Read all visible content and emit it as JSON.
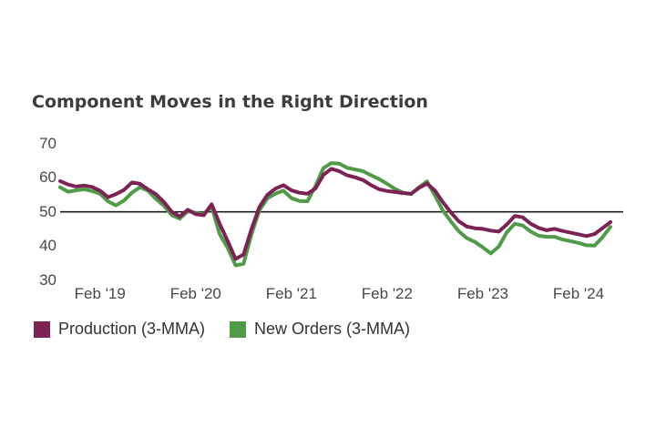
{
  "title": "Component Moves in the Right Direction",
  "legend": [
    {
      "label": "Production (3-MMA)",
      "color": "#7C2255"
    },
    {
      "label": "New Orders (3-MMA)",
      "color": "#4F9B48"
    }
  ],
  "chart_data": {
    "type": "line",
    "title": "Component Moves in the Right Direction",
    "x_unit": "month",
    "x_range": [
      "2018-09",
      "2024-06"
    ],
    "y_ticks": [
      70,
      60,
      50,
      40,
      30
    ],
    "ylim": [
      28,
      72
    ],
    "grid": false,
    "reference_line": 50,
    "reference_line_color": "#1a1a1a",
    "tick_labels": [
      "Feb '19",
      "Feb '20",
      "Feb '21",
      "Feb '22",
      "Feb '23",
      "Feb '24"
    ],
    "tick_month_indices": [
      5,
      17,
      29,
      41,
      53,
      65
    ],
    "legend_position": "bottom-left",
    "series": [
      {
        "name": "Production (3-MMA)",
        "color": "#7C2255",
        "values": [
          59.0,
          58.0,
          57.4,
          57.7,
          57.3,
          56.2,
          54.3,
          55.2,
          56.4,
          58.6,
          58.2,
          56.6,
          55.2,
          52.9,
          50.0,
          48.6,
          50.6,
          49.3,
          49.0,
          52.2,
          46.5,
          41.5,
          36.2,
          37.5,
          45.0,
          51.5,
          55.0,
          56.8,
          57.8,
          56.3,
          55.6,
          55.3,
          56.8,
          60.8,
          62.6,
          61.9,
          60.7,
          60.1,
          59.3,
          57.8,
          56.6,
          56.1,
          55.8,
          55.5,
          55.3,
          57.0,
          58.3,
          56.2,
          52.8,
          49.8,
          47.2,
          45.7,
          45.2,
          45.0,
          44.5,
          44.2,
          46.3,
          48.8,
          48.4,
          46.5,
          45.3,
          44.6,
          45.0,
          44.4,
          43.9,
          43.4,
          42.9,
          43.5,
          45.2,
          47.0
        ]
      },
      {
        "name": "New Orders (3-MMA)",
        "color": "#4F9B48",
        "values": [
          57.2,
          55.9,
          56.3,
          56.6,
          56.1,
          55.3,
          53.1,
          51.9,
          53.3,
          55.6,
          57.2,
          56.2,
          53.8,
          51.8,
          49.0,
          48.0,
          50.2,
          49.7,
          49.4,
          51.5,
          43.5,
          39.5,
          34.3,
          34.8,
          43.5,
          50.5,
          54.0,
          55.3,
          56.2,
          54.0,
          53.2,
          53.1,
          57.5,
          62.8,
          64.3,
          64.1,
          62.9,
          62.4,
          61.9,
          60.7,
          59.6,
          58.2,
          56.7,
          55.6,
          55.2,
          57.2,
          58.9,
          54.8,
          50.3,
          47.2,
          44.3,
          42.3,
          41.2,
          39.6,
          37.8,
          39.8,
          44.0,
          46.5,
          46.0,
          44.2,
          43.0,
          42.7,
          42.7,
          41.9,
          41.4,
          40.9,
          40.2,
          40.1,
          42.5,
          45.6
        ]
      }
    ]
  }
}
